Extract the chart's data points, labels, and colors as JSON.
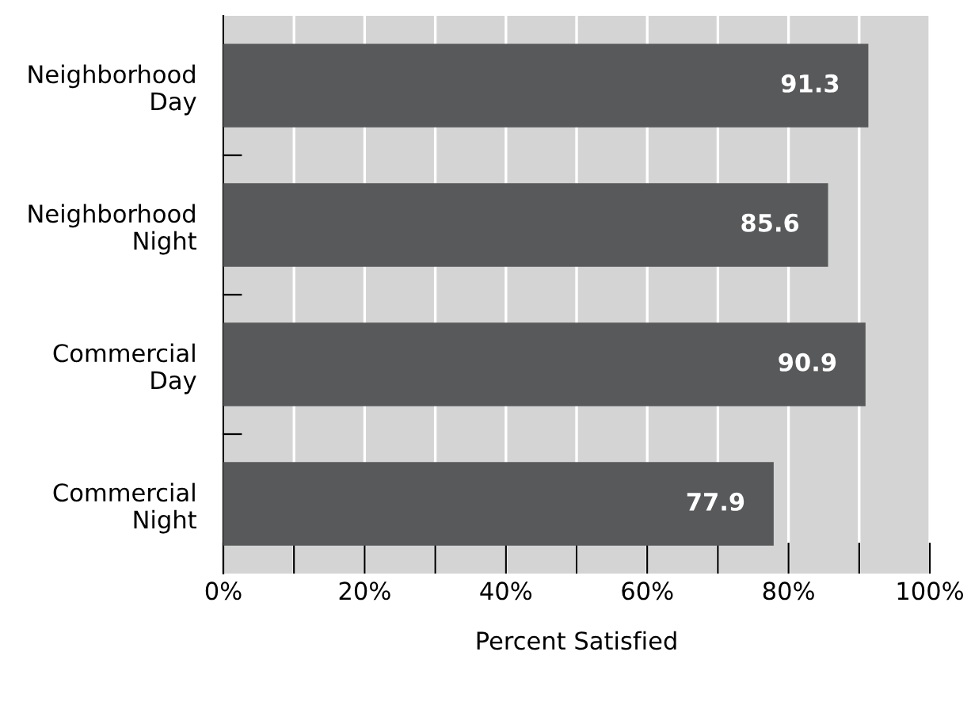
{
  "chart_data": {
    "type": "bar",
    "orientation": "horizontal",
    "xlabel": "Percent Satisfied",
    "categories": [
      "Neighborhood\nDay",
      "Neighborhood\nNight",
      "Commercial\nDay",
      "Commercial\nNight"
    ],
    "values": [
      91.3,
      85.6,
      90.9,
      77.9
    ],
    "color": "#58595b",
    "data_labels": true,
    "xlim": [
      0,
      100
    ],
    "xticks": [
      {
        "value": 0,
        "label": "0%"
      },
      {
        "value": 10,
        "label": null
      },
      {
        "value": 20,
        "label": "20%"
      },
      {
        "value": 30,
        "label": null
      },
      {
        "value": 40,
        "label": "40%"
      },
      {
        "value": 50,
        "label": null
      },
      {
        "value": 60,
        "label": "60%"
      },
      {
        "value": 70,
        "label": null
      },
      {
        "value": 80,
        "label": "80%"
      },
      {
        "value": 90,
        "label": null
      },
      {
        "value": 100,
        "label": "100%"
      }
    ],
    "grid": "x"
  }
}
